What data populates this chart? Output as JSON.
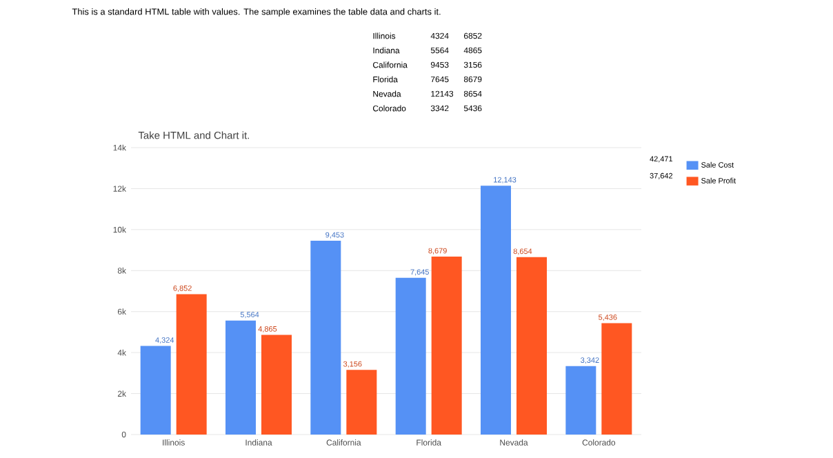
{
  "chart_data": {
    "type": "bar",
    "title": "Take HTML and Chart it.",
    "annotations": [
      "This is a standard HTML table with values. The sample examines the table data and charts it.",
      "42,471",
      "37,642",
      "4324",
      "6852",
      "5564",
      "4865",
      "9453",
      "3156",
      "7645",
      "8679",
      "12143",
      "8654",
      "3342",
      "5436"
    ],
    "categories": [
      "Illinois",
      "Indiana",
      "California",
      "Florida",
      "Nevada",
      "Colorado"
    ],
    "series": [
      {
        "name": "Sale Cost",
        "color": "#5591f5",
        "values": [
          4324,
          5564,
          9453,
          7645,
          12143,
          3342
        ],
        "value_labels": [
          "4,324",
          "5,564",
          "9,453",
          "7,645",
          "12,143",
          "3,342"
        ]
      },
      {
        "name": "Sale Profit",
        "color": "#ff5722",
        "values": [
          6852,
          4865,
          3156,
          8679,
          8654,
          5436
        ],
        "value_labels": [
          "6,852",
          "4,865",
          "3,156",
          "8,679",
          "8,654",
          "5,436"
        ]
      }
    ],
    "ylim": [
      0,
      14000
    ],
    "yticks": [
      0,
      {
        "value": 2000,
        "label": "2k"
      },
      {
        "value": 4000,
        "label": "4k"
      },
      {
        "value": 6000,
        "label": "6k"
      },
      {
        "value": 8000,
        "label": "8k"
      },
      {
        "value": 10000,
        "label": "10k"
      },
      {
        "value": 12000,
        "label": "12k"
      },
      {
        "value": 14000,
        "label": "14k"
      }
    ],
    "grid": "y",
    "legend": "top right"
  }
}
